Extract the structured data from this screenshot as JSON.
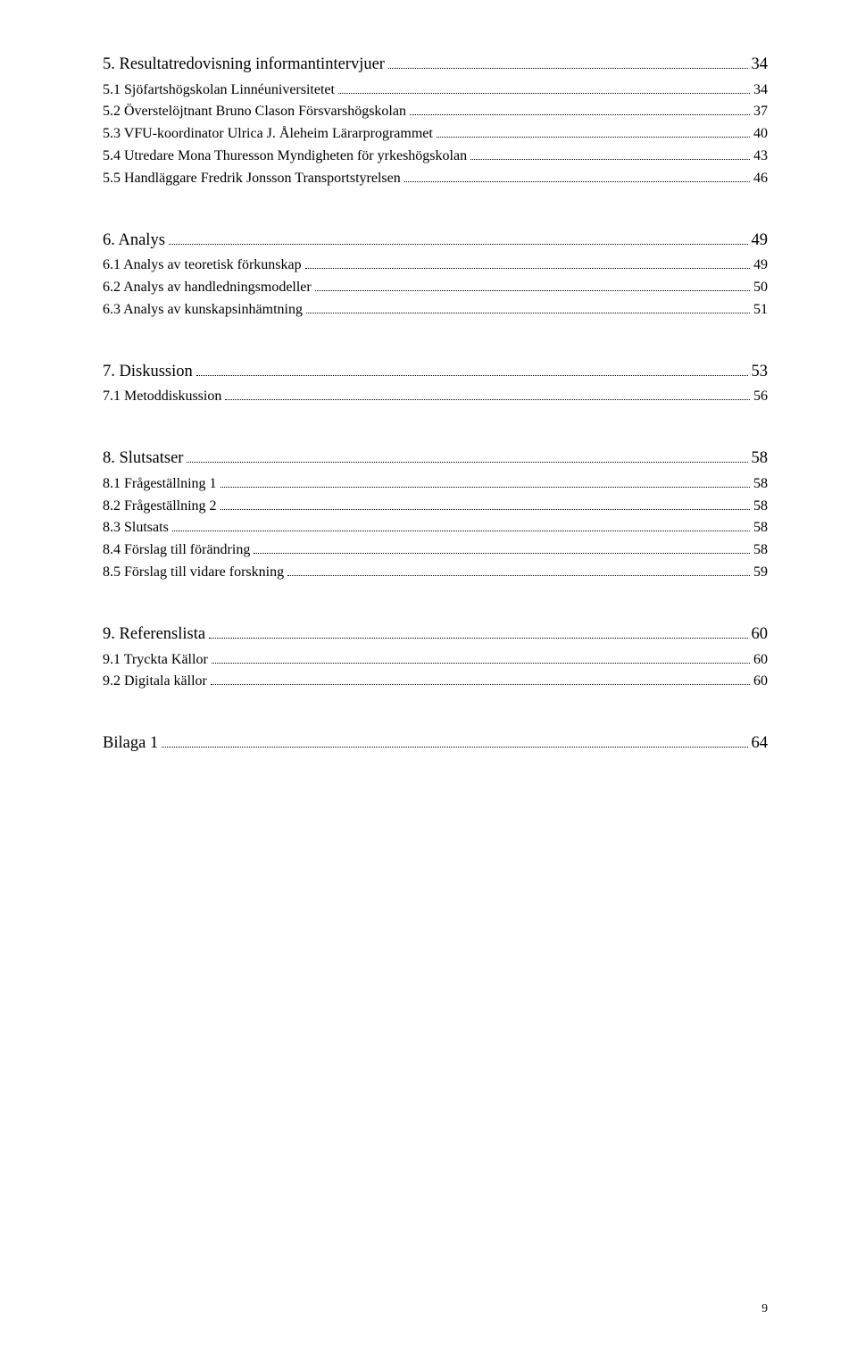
{
  "page_number": "9",
  "sections": [
    {
      "heading": {
        "label": "5. Resultatredovisning informantintervjuer",
        "page": "34"
      },
      "items": [
        {
          "label": "5.1 Sjöfartshögskolan Linnéuniversitetet",
          "page": "34"
        },
        {
          "label": "5.2 Överstelöjtnant Bruno Clason Försvarshögskolan",
          "page": "37"
        },
        {
          "label": "5.3 VFU-koordinator Ulrica J. Åleheim Lärarprogrammet",
          "page": "40"
        },
        {
          "label": "5.4 Utredare Mona Thuresson Myndigheten för yrkeshögskolan",
          "page": "43"
        },
        {
          "label": "5.5 Handläggare Fredrik Jonsson Transportstyrelsen",
          "page": "46"
        }
      ]
    },
    {
      "heading": {
        "label": "6. Analys",
        "page": "49"
      },
      "items": [
        {
          "label": "6.1 Analys av teoretisk förkunskap",
          "page": "49"
        },
        {
          "label": "6.2 Analys av handledningsmodeller",
          "page": "50"
        },
        {
          "label": "6.3 Analys av kunskapsinhämtning",
          "page": "51"
        }
      ]
    },
    {
      "heading": {
        "label": "7. Diskussion",
        "page": "53"
      },
      "items": [
        {
          "label": "7.1 Metoddiskussion",
          "page": "56"
        }
      ]
    },
    {
      "heading": {
        "label": "8. Slutsatser",
        "page": "58"
      },
      "items": [
        {
          "label": "8.1 Frågeställning 1",
          "page": "58"
        },
        {
          "label": "8.2 Frågeställning 2",
          "page": "58"
        },
        {
          "label": "8.3 Slutsats",
          "page": "58"
        },
        {
          "label": "8.4 Förslag till förändring",
          "page": "58"
        },
        {
          "label": "8.5 Förslag till vidare forskning",
          "page": "59"
        }
      ]
    },
    {
      "heading": {
        "label": "9. Referenslista",
        "page": "60"
      },
      "items": [
        {
          "label": "9.1 Tryckta Källor",
          "page": "60"
        },
        {
          "label": "9.2 Digitala källor",
          "page": "60"
        }
      ]
    },
    {
      "heading": {
        "label": "Bilaga 1",
        "page": "64"
      },
      "items": []
    }
  ]
}
